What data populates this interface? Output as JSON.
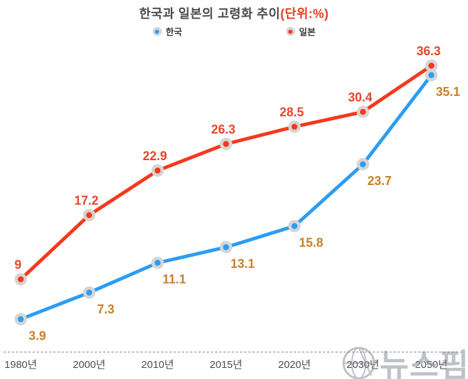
{
  "title": {
    "main": "한국과 일본의 고령화 추이",
    "unit": "(단위:%)"
  },
  "legend": [
    {
      "label": "한국",
      "color": "#2b9df4"
    },
    {
      "label": "일본",
      "color": "#f5391c"
    }
  ],
  "watermark": {
    "text": "뉴스핌"
  },
  "chart_data": {
    "type": "line",
    "title": "한국과 일본의 고령화 추이(단위:%)",
    "categories": [
      "1980년",
      "2000년",
      "2010년",
      "2015년",
      "2020년",
      "2030년",
      "2050년"
    ],
    "series": [
      {
        "key": "korea",
        "name": "한국",
        "color": "#2b9df4",
        "label_color": "#c8802a",
        "label_position": "below",
        "values": [
          3.9,
          7.3,
          11.1,
          13.1,
          15.8,
          23.7,
          35.1
        ]
      },
      {
        "key": "japan",
        "name": "일본",
        "color": "#f5391c",
        "label_color": "#e8432b",
        "label_position": "above",
        "values": [
          9,
          17.2,
          22.9,
          26.3,
          28.5,
          30.4,
          36.3
        ]
      }
    ],
    "ylim": [
      0,
      40
    ],
    "grid": false,
    "legend_position": "top",
    "marker_ring_color": "#d5d5d5",
    "axis": {
      "line_color": "#b9b9b9",
      "label_color": "#4d4d4d"
    }
  }
}
